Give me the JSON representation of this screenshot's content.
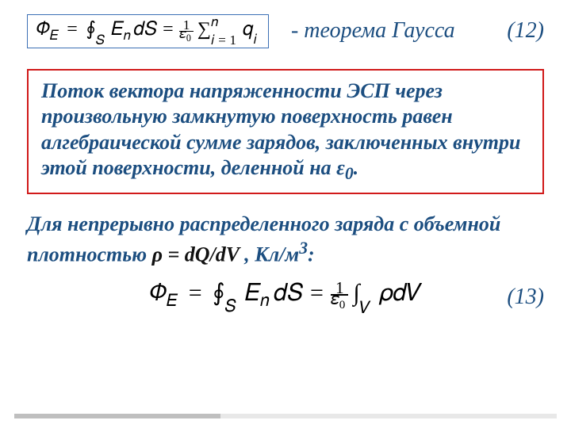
{
  "eq12": {
    "label": "- теорема Гаусса",
    "number": "(12)",
    "border_color": "#3b6fb5",
    "label_color": "#1c4e80",
    "label_fontsize": 28
  },
  "definition": {
    "text_before_eps": "Поток вектора напряженности ЭСП через произвольную замкнутую поверхность равен алгебраической сумме зарядов, заключенных внутри этой поверхности, деленной на ",
    "eps": "ε",
    "eps_sub": "0",
    "period": ".",
    "box_border_color": "#d11a1a",
    "text_color": "#1c4e80",
    "fontsize": 26
  },
  "continuous": {
    "prefix": "Для непрерывно распределенного заряда с объемной плотностью ",
    "rho_expr": "ρ = dQ/dV",
    "units_prefix": " , Кл/м",
    "units_sup": "3",
    "units_suffix": ":",
    "text_color": "#1c4e80",
    "fontsize": 26
  },
  "eq13": {
    "number": "(13)",
    "label_color": "#1c4e80",
    "fontsize": 30
  },
  "style": {
    "background": "#ffffff",
    "font_family": "Times New Roman",
    "accent_bar": {
      "dark": "#bfbfbf",
      "light": "#e8e8e8"
    }
  }
}
